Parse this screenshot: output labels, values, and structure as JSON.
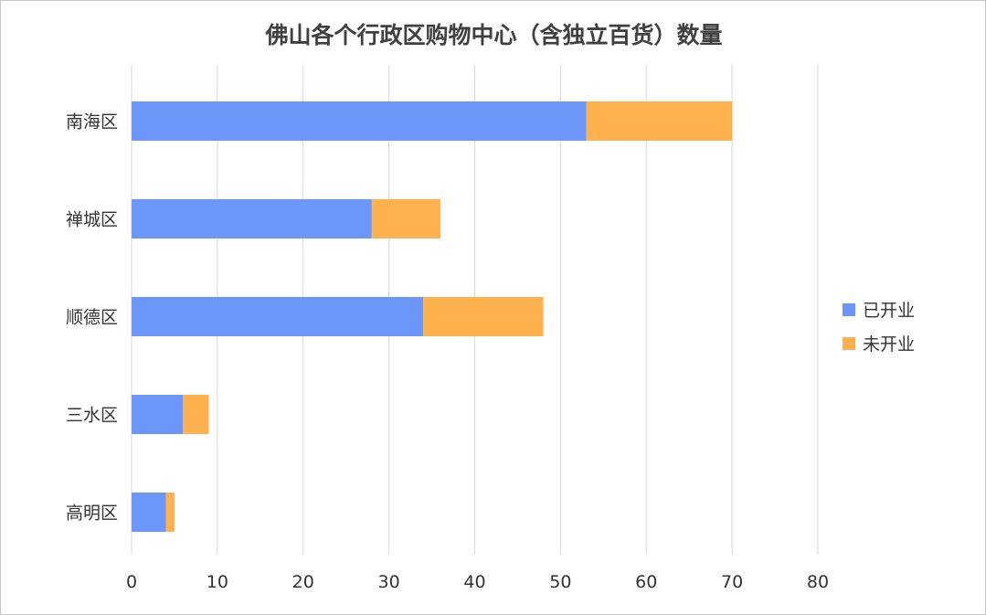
{
  "chart_data": {
    "type": "bar",
    "orientation": "horizontal",
    "stacked": true,
    "title": "佛山各个行政区购物中心（含独立百货）数量",
    "categories": [
      "南海区",
      "禅城区",
      "顺德区",
      "三水区",
      "高明区"
    ],
    "series": [
      {
        "name": "已开业",
        "values": [
          53,
          28,
          34,
          6,
          4
        ],
        "color": "#6d96fb"
      },
      {
        "name": "未开业",
        "values": [
          17,
          8,
          14,
          3,
          1
        ],
        "color": "#ffb14e"
      }
    ],
    "xlim": [
      0,
      80
    ],
    "xticks": [
      0,
      10,
      20,
      30,
      40,
      50,
      60,
      70,
      80
    ],
    "grid": "vertical",
    "legend_position": "right"
  },
  "colors": {
    "grid": "#d9d9d9",
    "axis_text": "#333333",
    "title": "#404040"
  }
}
